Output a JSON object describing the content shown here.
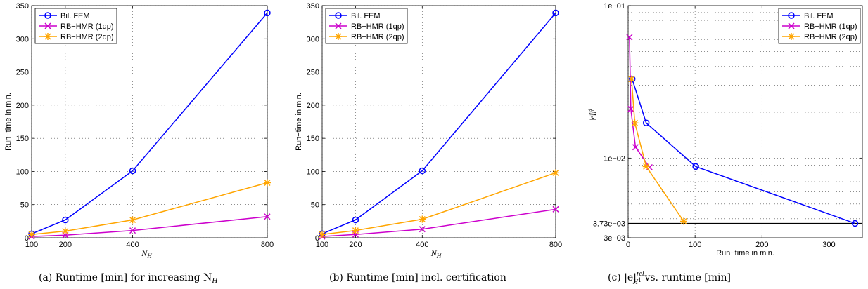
{
  "chart_data": [
    {
      "type": "line",
      "id": "a",
      "xlabel": "N_H",
      "ylabel": "Run−time in min.",
      "xlim": [
        100,
        800
      ],
      "ylim": [
        0,
        350
      ],
      "xticks": [
        100,
        200,
        400,
        800
      ],
      "yticks": [
        0,
        50,
        100,
        150,
        200,
        250,
        300,
        350
      ],
      "xgrid": [
        100,
        200,
        400,
        800
      ],
      "ygrid": [
        0,
        50,
        100,
        150,
        200,
        250,
        300,
        350
      ],
      "yscale": "linear",
      "legend": "top-left",
      "caption": "(a) Runtime [min] for increasing N",
      "caption_sub": "H",
      "series": [
        {
          "name": "Bil. FEM",
          "color": "#0000ff",
          "marker": "circle",
          "points": [
            [
              100,
              6
            ],
            [
              200,
              27
            ],
            [
              400,
              101
            ],
            [
              800,
              339
            ]
          ]
        },
        {
          "name": "RB−HMR (1qp)",
          "color": "#cc00cc",
          "marker": "x",
          "points": [
            [
              100,
              2
            ],
            [
              200,
              4
            ],
            [
              400,
              11
            ],
            [
              800,
              32
            ]
          ]
        },
        {
          "name": "RB−HMR (2qp)",
          "color": "#ffa500",
          "marker": "star",
          "points": [
            [
              100,
              5
            ],
            [
              200,
              10
            ],
            [
              400,
              27
            ],
            [
              800,
              83
            ]
          ]
        }
      ]
    },
    {
      "type": "line",
      "id": "b",
      "xlabel": "N_H",
      "ylabel": "Run−time in min.",
      "xlim": [
        100,
        800
      ],
      "ylim": [
        0,
        350
      ],
      "xticks": [
        100,
        200,
        400,
        800
      ],
      "yticks": [
        0,
        50,
        100,
        150,
        200,
        250,
        300,
        350
      ],
      "xgrid": [
        100,
        200,
        400,
        800
      ],
      "ygrid": [
        0,
        50,
        100,
        150,
        200,
        250,
        300,
        350
      ],
      "yscale": "linear",
      "legend": "top-left",
      "caption": "(b) Runtime [min] incl. certification",
      "caption_sub": "",
      "series": [
        {
          "name": "Bil. FEM",
          "color": "#0000ff",
          "marker": "circle",
          "points": [
            [
              100,
              6
            ],
            [
              200,
              27
            ],
            [
              400,
              101
            ],
            [
              800,
              339
            ]
          ]
        },
        {
          "name": "RB−HMR (1qp)",
          "color": "#cc00cc",
          "marker": "x",
          "points": [
            [
              100,
              2
            ],
            [
              200,
              5
            ],
            [
              400,
              13
            ],
            [
              800,
              43
            ]
          ]
        },
        {
          "name": "RB−HMR (2qp)",
          "color": "#ffa500",
          "marker": "star",
          "points": [
            [
              100,
              5
            ],
            [
              200,
              11
            ],
            [
              400,
              28
            ],
            [
              800,
              98
            ]
          ]
        }
      ]
    },
    {
      "type": "line",
      "id": "c",
      "xlabel": "Run−time in min.",
      "ylabel": "|e|^rel_H1",
      "xlim": [
        0,
        350
      ],
      "ylim": [
        0.003,
        0.1
      ],
      "xticks": [
        0,
        100,
        200,
        300
      ],
      "yticks": [
        0.003,
        0.00373,
        0.01,
        0.1
      ],
      "ytick_labels": [
        "3e−03",
        "3.73e−03",
        "1e−02",
        "1e−01"
      ],
      "xgrid": [
        0,
        100,
        200,
        300
      ],
      "ygrid": [
        0.004,
        0.005,
        0.006,
        0.007,
        0.008,
        0.009,
        0.01,
        0.02,
        0.03,
        0.04,
        0.05,
        0.06,
        0.07,
        0.08,
        0.09
      ],
      "yscale": "log",
      "hline": 0.00373,
      "legend": "top-right",
      "caption": "(c) |e|",
      "caption_sub": "",
      "series": [
        {
          "name": "Bil. FEM",
          "color": "#0000ff",
          "marker": "circle",
          "points": [
            [
              6,
              0.033
            ],
            [
              27,
              0.017
            ],
            [
              101,
              0.0088
            ],
            [
              339,
              0.00373
            ]
          ]
        },
        {
          "name": "RB−HMR (1qp)",
          "color": "#cc00cc",
          "marker": "x",
          "points": [
            [
              2,
              0.062
            ],
            [
              4,
              0.021
            ],
            [
              11,
              0.0118
            ],
            [
              32,
              0.0087
            ]
          ]
        },
        {
          "name": "RB−HMR (2qp)",
          "color": "#ffa500",
          "marker": "star",
          "points": [
            [
              5,
              0.033
            ],
            [
              10,
              0.017
            ],
            [
              27,
              0.0088
            ],
            [
              83,
              0.00385
            ]
          ]
        }
      ]
    }
  ],
  "captions": {
    "a_main": "(a) Runtime [min] for increasing N",
    "a_sub": "H",
    "b_main": "(b) Runtime [min] incl. certification",
    "c_pre": "(c) |e|",
    "c_sup": "rel",
    "c_sub": "H",
    "c_subsup": "1",
    "c_post": " vs. runtime [min]"
  },
  "ylabel_c": {
    "e": "|e|",
    "sup": "rel",
    "sub": "H",
    "subsup": "1"
  },
  "xlabel_nh": {
    "main": "N",
    "sub": "H"
  }
}
